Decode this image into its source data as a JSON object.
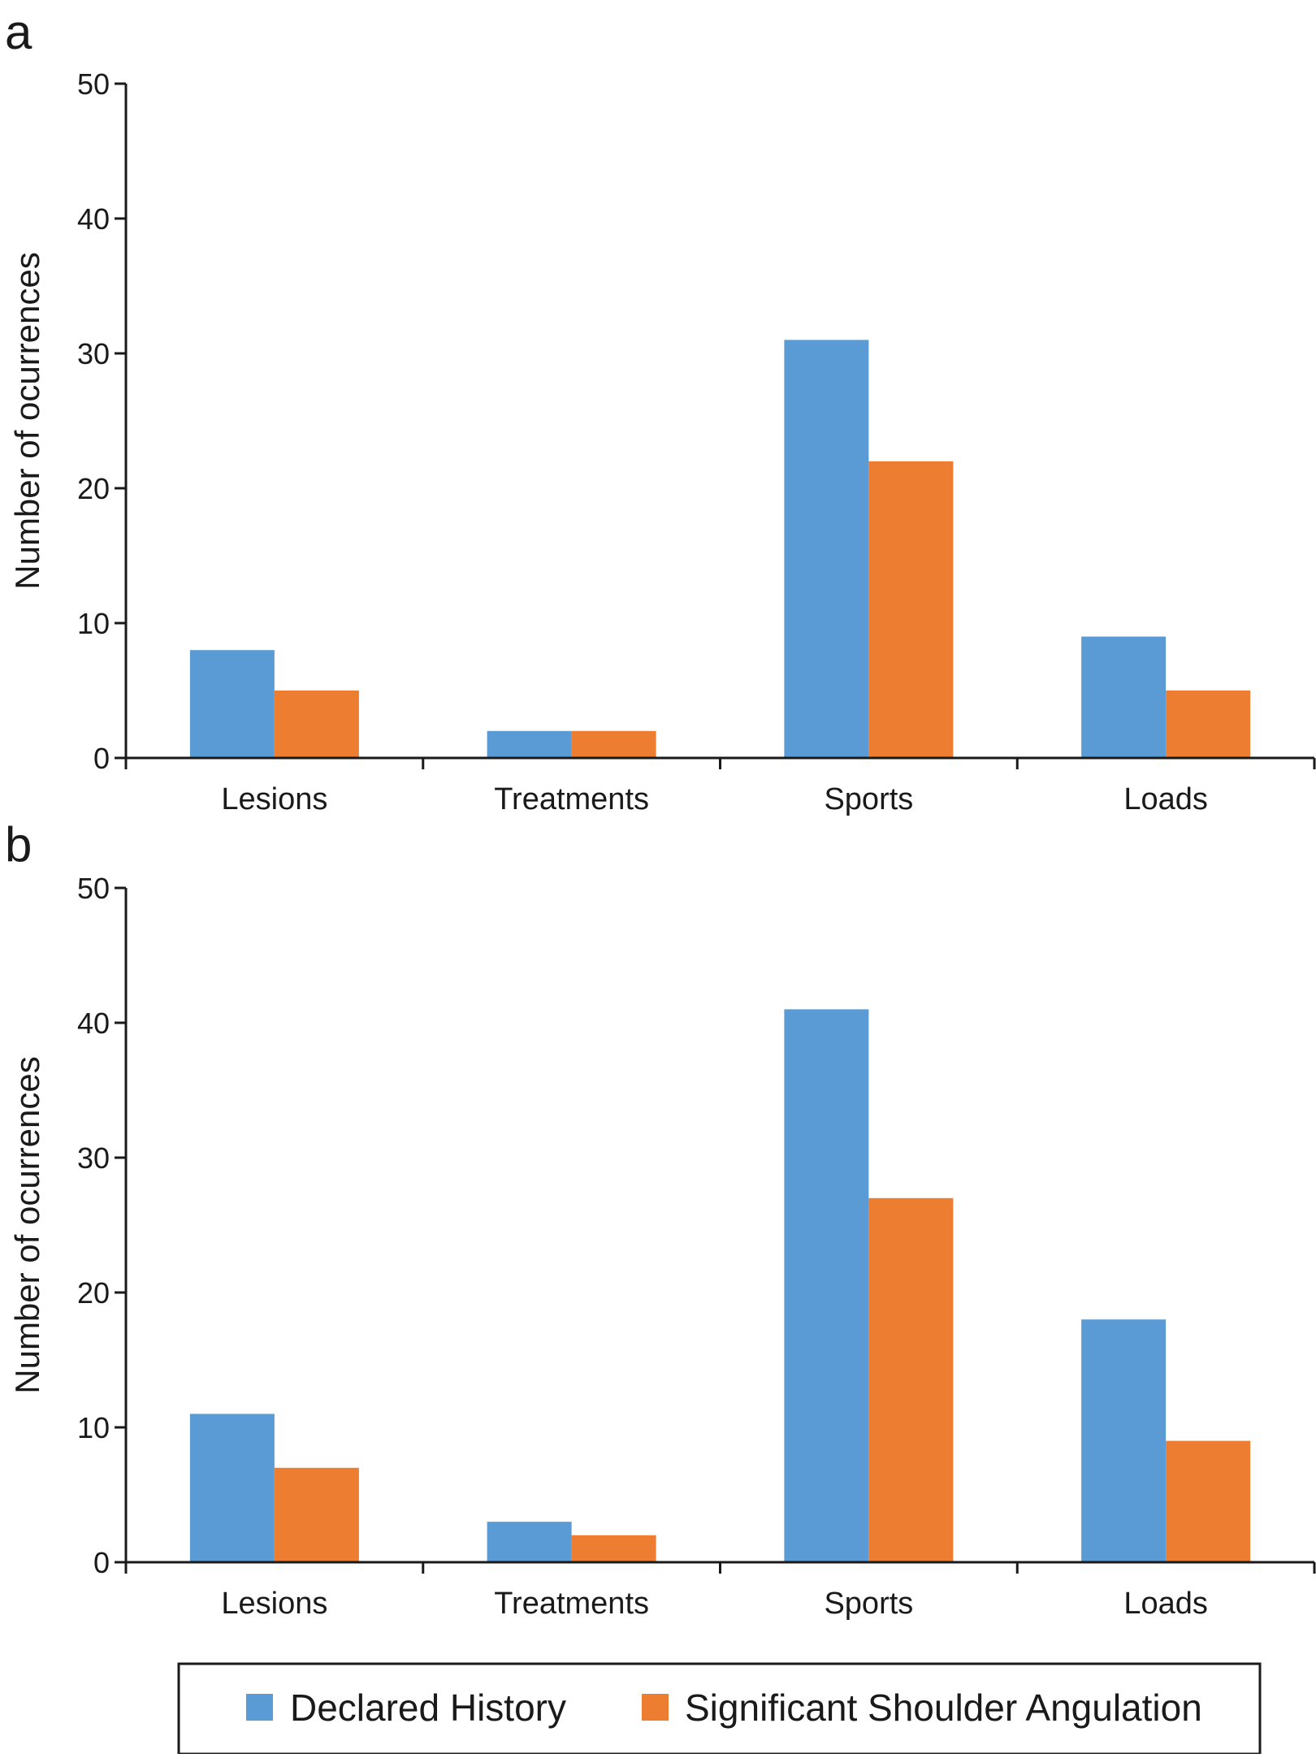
{
  "colors": {
    "declared_history": "#5b9bd5",
    "significant_shoulder_angulation": "#ed7d31",
    "axis": "#1a1a1a"
  },
  "legend": {
    "items": [
      {
        "label": "Declared History",
        "color": "#5b9bd5"
      },
      {
        "label": "Significant Shoulder Angulation",
        "color": "#ed7d31"
      }
    ]
  },
  "chart_data": [
    {
      "panel": "a",
      "type": "bar",
      "categories": [
        "Lesions",
        "Treatments",
        "Sports",
        "Loads"
      ],
      "series": [
        {
          "name": "Declared History",
          "values": [
            8,
            2,
            31,
            9
          ]
        },
        {
          "name": "Significant Shoulder Angulation",
          "values": [
            5,
            2,
            22,
            5
          ]
        }
      ],
      "xlabel": "",
      "ylabel": "Number of ocurrences",
      "ylim": [
        0,
        50
      ],
      "yticks": [
        0,
        10,
        20,
        30,
        40,
        50
      ],
      "grid": false,
      "legend_position": "bottom"
    },
    {
      "panel": "b",
      "type": "bar",
      "categories": [
        "Lesions",
        "Treatments",
        "Sports",
        "Loads"
      ],
      "series": [
        {
          "name": "Declared History",
          "values": [
            11,
            3,
            41,
            18
          ]
        },
        {
          "name": "Significant Shoulder Angulation",
          "values": [
            7,
            2,
            27,
            9
          ]
        }
      ],
      "xlabel": "",
      "ylabel": "Number of ocurrences",
      "ylim": [
        0,
        50
      ],
      "yticks": [
        0,
        10,
        20,
        30,
        40,
        50
      ],
      "grid": false,
      "legend_position": "bottom"
    }
  ]
}
